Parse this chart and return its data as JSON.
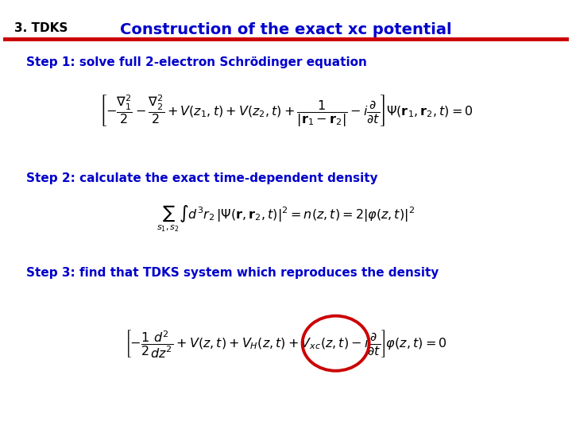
{
  "title": "Construction of the exact xc potential",
  "title_left": "3. TDKS",
  "title_color": "#0000CC",
  "title_left_color": "#000000",
  "line_color": "#CC0000",
  "bg_color": "#FFFFFF",
  "step1_text": "Step 1: solve full 2-electron Schrödinger equation",
  "step2_text": "Step 2: calculate the exact time-dependent density",
  "step3_text": "Step 3: find that TDKS system which reproduces the density",
  "step_color": "#0000CC",
  "eq_color": "#000000",
  "circle_color": "#CC0000"
}
